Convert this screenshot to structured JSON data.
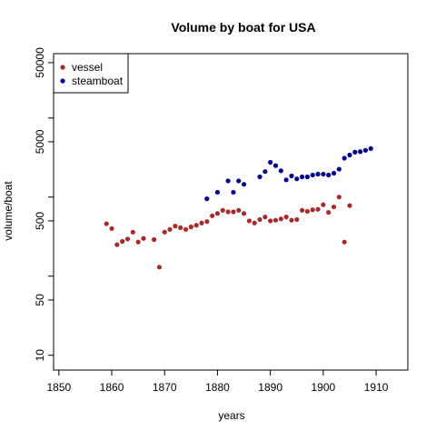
{
  "chart_data": {
    "type": "scatter",
    "title": "Volume by boat for USA",
    "xlabel": "years",
    "ylabel": "volume/boat",
    "x_ticks": [
      1850,
      1860,
      1870,
      1880,
      1890,
      1900,
      1910
    ],
    "y_ticks": [
      10,
      50,
      500,
      5000,
      50000
    ],
    "y_scale": "log",
    "xlim": [
      1849,
      1916
    ],
    "ylim": [
      6.5,
      65000
    ],
    "grid": false,
    "legend_position": "top-left",
    "series": [
      {
        "name": "vessel",
        "color": "#a52a2a",
        "points": [
          [
            1859,
            460
          ],
          [
            1860,
            400
          ],
          [
            1861,
            250
          ],
          [
            1862,
            275
          ],
          [
            1863,
            295
          ],
          [
            1864,
            360
          ],
          [
            1865,
            270
          ],
          [
            1866,
            300
          ],
          [
            1868,
            290
          ],
          [
            1869,
            130
          ],
          [
            1870,
            360
          ],
          [
            1871,
            390
          ],
          [
            1872,
            430
          ],
          [
            1873,
            410
          ],
          [
            1874,
            390
          ],
          [
            1875,
            420
          ],
          [
            1876,
            440
          ],
          [
            1877,
            470
          ],
          [
            1878,
            490
          ],
          [
            1879,
            580
          ],
          [
            1880,
            620
          ],
          [
            1881,
            680
          ],
          [
            1882,
            650
          ],
          [
            1883,
            650
          ],
          [
            1884,
            680
          ],
          [
            1885,
            620
          ],
          [
            1886,
            500
          ],
          [
            1887,
            470
          ],
          [
            1888,
            520
          ],
          [
            1889,
            560
          ],
          [
            1890,
            500
          ],
          [
            1891,
            510
          ],
          [
            1892,
            530
          ],
          [
            1893,
            560
          ],
          [
            1894,
            510
          ],
          [
            1895,
            520
          ],
          [
            1896,
            680
          ],
          [
            1897,
            660
          ],
          [
            1898,
            690
          ],
          [
            1899,
            700
          ],
          [
            1900,
            800
          ],
          [
            1901,
            640
          ],
          [
            1902,
            750
          ],
          [
            1903,
            1000
          ],
          [
            1904,
            270
          ],
          [
            1905,
            780
          ]
        ]
      },
      {
        "name": "steamboat",
        "color": "#00008b",
        "points": [
          [
            1878,
            950
          ],
          [
            1880,
            1150
          ],
          [
            1882,
            1600
          ],
          [
            1883,
            1150
          ],
          [
            1884,
            1600
          ],
          [
            1885,
            1450
          ],
          [
            1888,
            1800
          ],
          [
            1889,
            2100
          ],
          [
            1890,
            2750
          ],
          [
            1891,
            2500
          ],
          [
            1892,
            2150
          ],
          [
            1893,
            1650
          ],
          [
            1894,
            1850
          ],
          [
            1895,
            1700
          ],
          [
            1896,
            1800
          ],
          [
            1897,
            1800
          ],
          [
            1898,
            1900
          ],
          [
            1899,
            1950
          ],
          [
            1900,
            1950
          ],
          [
            1901,
            1900
          ],
          [
            1902,
            2000
          ],
          [
            1903,
            2250
          ],
          [
            1904,
            3100
          ],
          [
            1905,
            3400
          ],
          [
            1906,
            3700
          ],
          [
            1907,
            3750
          ],
          [
            1908,
            3900
          ],
          [
            1909,
            4100
          ]
        ]
      }
    ]
  }
}
